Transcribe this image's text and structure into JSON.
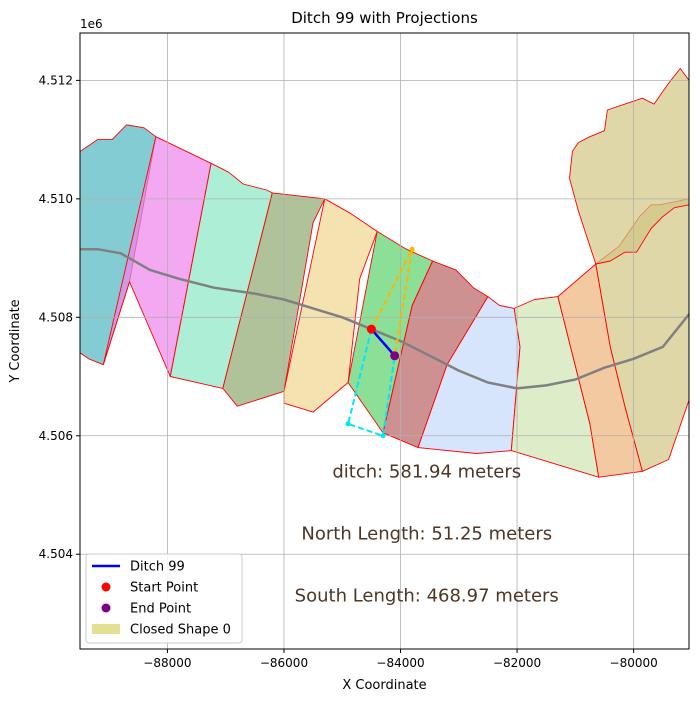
{
  "chart_data": {
    "type": "map-plot",
    "title": "Ditch 99 with Projections",
    "xlabel": "X Coordinate",
    "ylabel": "Y Coordinate",
    "y_offset_label": "1e6",
    "xlim": [
      -89500,
      -79050
    ],
    "ylim": [
      4502400,
      4512800
    ],
    "x_ticks": [
      {
        "value": -88000,
        "label": "−88000"
      },
      {
        "value": -86000,
        "label": "−86000"
      },
      {
        "value": -84000,
        "label": "−84000"
      },
      {
        "value": -82000,
        "label": "−82000"
      },
      {
        "value": -80000,
        "label": "−80000"
      }
    ],
    "y_ticks": [
      {
        "value": 4504000,
        "label": "4.504"
      },
      {
        "value": 4506000,
        "label": "4.506"
      },
      {
        "value": 4508000,
        "label": "4.508"
      },
      {
        "value": 4510000,
        "label": "4.510"
      },
      {
        "value": 4512000,
        "label": "4.512"
      }
    ],
    "grid": true,
    "legend_position": "bottom-left",
    "legend": [
      {
        "label": "Ditch 99",
        "kind": "line",
        "color": "#0000ff"
      },
      {
        "label": "Start Point",
        "kind": "dot",
        "color": "#ff0000"
      },
      {
        "label": "End Point",
        "kind": "dot",
        "color": "#800080"
      },
      {
        "label": "Closed Shape 0",
        "kind": "patch",
        "color": "#d8d66e"
      }
    ],
    "annotations": [
      {
        "text": "ditch: 581.94 meters",
        "x": -83550,
        "y": 4505400
      },
      {
        "text": "North Length: 51.25 meters",
        "x": -83550,
        "y": 4504350
      },
      {
        "text": "South Length: 468.97 meters",
        "x": -83550,
        "y": 4503300
      }
    ],
    "shapes": [
      {
        "color": "#4fb7c0",
        "points": [
          [
            -89500,
            4510800
          ],
          [
            -89200,
            4511000
          ],
          [
            -88950,
            4511000
          ],
          [
            -88700,
            4511250
          ],
          [
            -88400,
            4511200
          ],
          [
            -88200,
            4511050
          ],
          [
            -88650,
            4508600
          ],
          [
            -89100,
            4507200
          ],
          [
            -89350,
            4507300
          ],
          [
            -89500,
            4507400
          ]
        ]
      },
      {
        "color": "#ec85ec",
        "points": [
          [
            -88200,
            4511050
          ],
          [
            -87250,
            4510600
          ],
          [
            -87950,
            4507000
          ],
          [
            -88650,
            4508600
          ],
          [
            -89100,
            4507200
          ]
        ]
      },
      {
        "color": "#8ae8c4",
        "points": [
          [
            -87250,
            4510600
          ],
          [
            -86950,
            4510450
          ],
          [
            -86700,
            4510250
          ],
          [
            -86300,
            4510150
          ],
          [
            -86200,
            4510100
          ],
          [
            -86300,
            4509700
          ],
          [
            -87050,
            4506800
          ],
          [
            -87950,
            4507000
          ]
        ]
      },
      {
        "color": "#8fa86e",
        "points": [
          [
            -86200,
            4510100
          ],
          [
            -85300,
            4510000
          ],
          [
            -85500,
            4509600
          ],
          [
            -86000,
            4506750
          ],
          [
            -86800,
            4506500
          ],
          [
            -87050,
            4506800
          ]
        ]
      },
      {
        "color": "#f0d58e",
        "points": [
          [
            -85300,
            4510000
          ],
          [
            -84850,
            4509750
          ],
          [
            -84400,
            4509450
          ],
          [
            -84700,
            4508650
          ],
          [
            -84900,
            4506900
          ],
          [
            -85500,
            4506400
          ],
          [
            -86000,
            4506550
          ],
          [
            -86000,
            4506750
          ]
        ]
      },
      {
        "color": "#5bd16a",
        "points": [
          [
            -84400,
            4509450
          ],
          [
            -83900,
            4509150
          ],
          [
            -83450,
            4508950
          ],
          [
            -83800,
            4508200
          ],
          [
            -84300,
            4506050
          ],
          [
            -84900,
            4506900
          ]
        ]
      },
      {
        "color": "#b86262",
        "points": [
          [
            -83450,
            4508950
          ],
          [
            -83050,
            4508800
          ],
          [
            -82750,
            4508500
          ],
          [
            -82500,
            4508350
          ],
          [
            -83200,
            4507200
          ],
          [
            -83700,
            4505800
          ],
          [
            -84300,
            4506050
          ],
          [
            -83800,
            4508200
          ]
        ]
      },
      {
        "color": "#c4d8fb",
        "points": [
          [
            -82500,
            4508350
          ],
          [
            -82300,
            4508200
          ],
          [
            -82050,
            4508150
          ],
          [
            -81950,
            4507500
          ],
          [
            -82100,
            4505750
          ],
          [
            -82700,
            4505700
          ],
          [
            -83700,
            4505800
          ],
          [
            -83200,
            4507200
          ]
        ]
      },
      {
        "color": "#cfe4b2",
        "points": [
          [
            -82050,
            4508150
          ],
          [
            -81700,
            4508300
          ],
          [
            -81300,
            4508350
          ],
          [
            -80750,
            4506200
          ],
          [
            -80600,
            4505300
          ],
          [
            -82100,
            4505750
          ],
          [
            -81950,
            4507500
          ]
        ]
      },
      {
        "color": "#eeb27a",
        "points": [
          [
            -81300,
            4508350
          ],
          [
            -80650,
            4508900
          ],
          [
            -80400,
            4507500
          ],
          [
            -80150,
            4506500
          ],
          [
            -79850,
            4505400
          ],
          [
            -80600,
            4505300
          ],
          [
            -80750,
            4506200
          ]
        ]
      },
      {
        "color": "#d1c683",
        "points": [
          [
            -80650,
            4508900
          ],
          [
            -80250,
            4509200
          ],
          [
            -79900,
            4509700
          ],
          [
            -79700,
            4509900
          ],
          [
            -79550,
            4509900
          ],
          [
            -79050,
            4510000
          ],
          [
            -79050,
            4506600
          ],
          [
            -79400,
            4505600
          ],
          [
            -79850,
            4505400
          ],
          [
            -80150,
            4506500
          ],
          [
            -80400,
            4507500
          ]
        ]
      },
      {
        "color": "#d1c683",
        "points": [
          [
            -80650,
            4508900
          ],
          [
            -80400,
            4508950
          ],
          [
            -80150,
            4509100
          ],
          [
            -79950,
            4509100
          ],
          [
            -79700,
            4509500
          ],
          [
            -79500,
            4509700
          ],
          [
            -79300,
            4509850
          ],
          [
            -79050,
            4509900
          ],
          [
            -79050,
            4512000
          ],
          [
            -79200,
            4512200
          ],
          [
            -79400,
            4511950
          ],
          [
            -79650,
            4511600
          ],
          [
            -79850,
            4511700
          ],
          [
            -80150,
            4511600
          ],
          [
            -80450,
            4511500
          ],
          [
            -80500,
            4511150
          ],
          [
            -80750,
            4511050
          ],
          [
            -80950,
            4510950
          ],
          [
            -81050,
            4510800
          ],
          [
            -81100,
            4510350
          ],
          [
            -80950,
            4509800
          ],
          [
            -80750,
            4509200
          ]
        ]
      }
    ],
    "center_line": [
      [
        -89500,
        4509150
      ],
      [
        -89200,
        4509150
      ],
      [
        -88800,
        4509080
      ],
      [
        -88300,
        4508800
      ],
      [
        -87800,
        4508650
      ],
      [
        -87200,
        4508500
      ],
      [
        -86500,
        4508400
      ],
      [
        -86000,
        4508300
      ],
      [
        -85500,
        4508150
      ],
      [
        -85000,
        4508000
      ],
      [
        -84500,
        4507800
      ],
      [
        -84000,
        4507600
      ],
      [
        -83500,
        4507350
      ],
      [
        -83000,
        4507100
      ],
      [
        -82500,
        4506900
      ],
      [
        -82000,
        4506800
      ],
      [
        -81500,
        4506850
      ],
      [
        -81000,
        4506950
      ],
      [
        -80500,
        4507150
      ],
      [
        -80000,
        4507300
      ],
      [
        -79500,
        4507500
      ],
      [
        -79050,
        4508050
      ]
    ],
    "ditch_line": {
      "color": "#0000ff",
      "points": [
        [
          -84500,
          4507800
        ],
        [
          -84100,
          4507350
        ]
      ]
    },
    "start_point": {
      "x": -84500,
      "y": 4507800,
      "color": "#ff0000"
    },
    "end_point": {
      "x": -84100,
      "y": 4507350,
      "color": "#800080"
    },
    "north_projection": {
      "color": "#ffb400",
      "points": [
        [
          -84500,
          4507800
        ],
        [
          -83800,
          4509150
        ],
        [
          -84100,
          4507350
        ]
      ]
    },
    "south_projection": {
      "color": "#00e5ff",
      "points": [
        [
          -84500,
          4507800
        ],
        [
          -84900,
          4506200
        ],
        [
          -84300,
          4506000
        ],
        [
          -84100,
          4507350
        ]
      ]
    }
  }
}
